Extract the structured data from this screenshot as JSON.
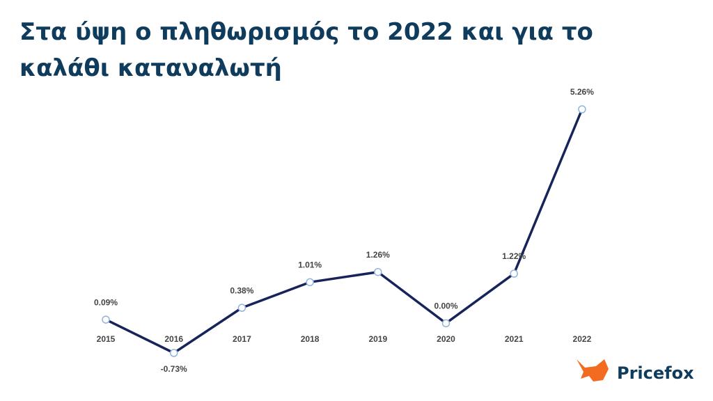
{
  "chart_data": {
    "type": "line",
    "title": "Στα ύψη ο πληθωρισμός το 2022 και για το καλάθι καταναλωτή",
    "categories": [
      "2015",
      "2016",
      "2017",
      "2018",
      "2019",
      "2020",
      "2021",
      "2022"
    ],
    "values": [
      0.09,
      -0.73,
      0.38,
      1.01,
      1.26,
      0.0,
      1.22,
      5.26
    ],
    "value_labels": [
      "0.09%",
      "-0.73%",
      "0.38%",
      "1.01%",
      "1.26%",
      "0.00%",
      "1.22%",
      "5.26%"
    ],
    "color": "#17245a"
  },
  "brand": "Pricefox"
}
